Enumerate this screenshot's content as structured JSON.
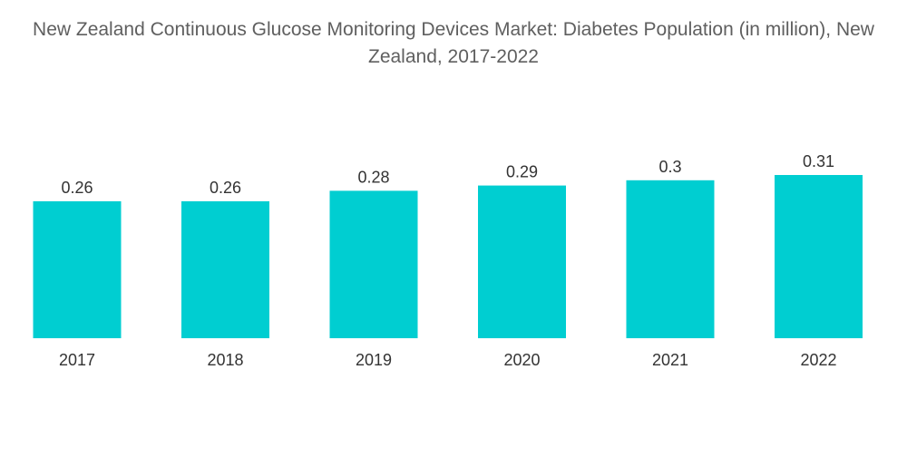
{
  "chart_data": {
    "type": "bar",
    "title": "New Zealand Continuous Glucose Monitoring Devices Market: Diabetes Population (in million), New Zealand, 2017-2022",
    "categories": [
      "2017",
      "2018",
      "2019",
      "2020",
      "2021",
      "2022"
    ],
    "values": [
      0.26,
      0.26,
      0.28,
      0.29,
      0.3,
      0.31
    ],
    "data_labels": [
      "0.26",
      "0.26",
      "0.28",
      "0.29",
      "0.3",
      "0.31"
    ],
    "xlabel": "",
    "ylabel": "",
    "ylim": [
      0,
      0.31
    ],
    "grid": false,
    "legend": "none",
    "bar_color": "#00CED1"
  }
}
